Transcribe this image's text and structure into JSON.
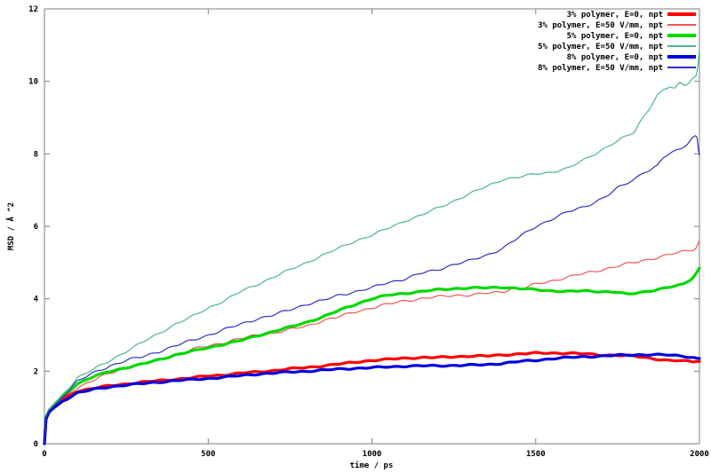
{
  "chart_data": {
    "type": "line",
    "title": "",
    "xlabel": "time / ps",
    "ylabel": "MSD / Å ^2",
    "xlim": [
      0,
      2000
    ],
    "ylim": [
      0,
      12
    ],
    "x_ticks": [
      "0",
      "500",
      "1000",
      "1500",
      "2000"
    ],
    "x_tick_values": [
      0,
      500,
      1000,
      1500,
      2000
    ],
    "y_ticks": [
      "0",
      "2",
      "4",
      "6",
      "8",
      "10",
      "12"
    ],
    "y_tick_values": [
      0,
      2,
      4,
      6,
      8,
      10,
      12
    ],
    "grid": false,
    "legend_position": "top-right-inside",
    "border_color": "#7f7f7f",
    "text_color": "#000000",
    "series": [
      {
        "name": "3% polymer, E=0, npt",
        "color": "#ff0000",
        "width": 3.2,
        "noise": 0.022,
        "points": [
          [
            0,
            0
          ],
          [
            5,
            0.7
          ],
          [
            15,
            0.9
          ],
          [
            30,
            1.02
          ],
          [
            60,
            1.25
          ],
          [
            100,
            1.45
          ],
          [
            150,
            1.53
          ],
          [
            200,
            1.6
          ],
          [
            250,
            1.65
          ],
          [
            300,
            1.7
          ],
          [
            350,
            1.74
          ],
          [
            400,
            1.78
          ],
          [
            450,
            1.82
          ],
          [
            500,
            1.87
          ],
          [
            550,
            1.9
          ],
          [
            600,
            1.95
          ],
          [
            650,
            1.98
          ],
          [
            700,
            2.02
          ],
          [
            750,
            2.07
          ],
          [
            800,
            2.1
          ],
          [
            850,
            2.15
          ],
          [
            900,
            2.2
          ],
          [
            950,
            2.25
          ],
          [
            1000,
            2.3
          ],
          [
            1050,
            2.33
          ],
          [
            1100,
            2.36
          ],
          [
            1150,
            2.38
          ],
          [
            1200,
            2.38
          ],
          [
            1250,
            2.4
          ],
          [
            1300,
            2.42
          ],
          [
            1350,
            2.42
          ],
          [
            1400,
            2.45
          ],
          [
            1450,
            2.48
          ],
          [
            1500,
            2.5
          ],
          [
            1550,
            2.5
          ],
          [
            1600,
            2.5
          ],
          [
            1650,
            2.48
          ],
          [
            1700,
            2.45
          ],
          [
            1750,
            2.44
          ],
          [
            1800,
            2.42
          ],
          [
            1850,
            2.36
          ],
          [
            1900,
            2.3
          ],
          [
            1950,
            2.28
          ],
          [
            2000,
            2.27
          ]
        ]
      },
      {
        "name": "3% polymer, E=50 V/mm, npt",
        "color": "#f05555",
        "width": 1.2,
        "noise": 0.04,
        "points": [
          [
            0,
            0
          ],
          [
            5,
            0.7
          ],
          [
            15,
            0.9
          ],
          [
            30,
            1.05
          ],
          [
            60,
            1.3
          ],
          [
            100,
            1.55
          ],
          [
            150,
            1.75
          ],
          [
            200,
            1.95
          ],
          [
            250,
            2.1
          ],
          [
            300,
            2.2
          ],
          [
            350,
            2.3
          ],
          [
            400,
            2.45
          ],
          [
            450,
            2.6
          ],
          [
            500,
            2.7
          ],
          [
            550,
            2.8
          ],
          [
            600,
            2.9
          ],
          [
            650,
            3.0
          ],
          [
            700,
            3.05
          ],
          [
            750,
            3.15
          ],
          [
            800,
            3.25
          ],
          [
            850,
            3.4
          ],
          [
            900,
            3.5
          ],
          [
            950,
            3.65
          ],
          [
            1000,
            3.75
          ],
          [
            1050,
            3.85
          ],
          [
            1100,
            3.95
          ],
          [
            1150,
            4.0
          ],
          [
            1200,
            4.05
          ],
          [
            1250,
            4.1
          ],
          [
            1300,
            4.1
          ],
          [
            1350,
            4.15
          ],
          [
            1400,
            4.2
          ],
          [
            1430,
            4.3
          ],
          [
            1460,
            4.28
          ],
          [
            1500,
            4.4
          ],
          [
            1550,
            4.5
          ],
          [
            1600,
            4.6
          ],
          [
            1650,
            4.7
          ],
          [
            1700,
            4.8
          ],
          [
            1750,
            4.9
          ],
          [
            1800,
            5.0
          ],
          [
            1850,
            5.1
          ],
          [
            1900,
            5.2
          ],
          [
            1950,
            5.3
          ],
          [
            1975,
            5.35
          ],
          [
            1990,
            5.4
          ],
          [
            2000,
            5.6
          ]
        ]
      },
      {
        "name": "5% polymer, E=0, npt",
        "color": "#00d900",
        "width": 3.2,
        "noise": 0.022,
        "points": [
          [
            0,
            0
          ],
          [
            5,
            0.73
          ],
          [
            15,
            0.93
          ],
          [
            30,
            1.08
          ],
          [
            60,
            1.35
          ],
          [
            100,
            1.65
          ],
          [
            150,
            1.85
          ],
          [
            200,
            2.0
          ],
          [
            250,
            2.1
          ],
          [
            300,
            2.2
          ],
          [
            350,
            2.32
          ],
          [
            400,
            2.45
          ],
          [
            450,
            2.55
          ],
          [
            500,
            2.65
          ],
          [
            550,
            2.75
          ],
          [
            600,
            2.85
          ],
          [
            650,
            2.98
          ],
          [
            700,
            3.1
          ],
          [
            750,
            3.22
          ],
          [
            800,
            3.35
          ],
          [
            850,
            3.5
          ],
          [
            900,
            3.68
          ],
          [
            950,
            3.85
          ],
          [
            1000,
            4.0
          ],
          [
            1050,
            4.1
          ],
          [
            1100,
            4.15
          ],
          [
            1150,
            4.2
          ],
          [
            1200,
            4.25
          ],
          [
            1250,
            4.28
          ],
          [
            1300,
            4.3
          ],
          [
            1350,
            4.3
          ],
          [
            1400,
            4.32
          ],
          [
            1450,
            4.28
          ],
          [
            1500,
            4.25
          ],
          [
            1550,
            4.22
          ],
          [
            1600,
            4.2
          ],
          [
            1650,
            4.22
          ],
          [
            1700,
            4.2
          ],
          [
            1750,
            4.18
          ],
          [
            1780,
            4.12
          ],
          [
            1800,
            4.15
          ],
          [
            1850,
            4.22
          ],
          [
            1900,
            4.3
          ],
          [
            1950,
            4.4
          ],
          [
            1975,
            4.55
          ],
          [
            1990,
            4.7
          ],
          [
            2000,
            4.85
          ]
        ]
      },
      {
        "name": "5% polymer, E=50 V/mm, npt",
        "color": "#4cb888",
        "width": 1.2,
        "noise": 0.035,
        "points": [
          [
            0,
            0
          ],
          [
            5,
            0.75
          ],
          [
            15,
            0.95
          ],
          [
            30,
            1.1
          ],
          [
            60,
            1.4
          ],
          [
            100,
            1.82
          ],
          [
            150,
            2.05
          ],
          [
            200,
            2.3
          ],
          [
            250,
            2.55
          ],
          [
            300,
            2.8
          ],
          [
            350,
            3.05
          ],
          [
            400,
            3.3
          ],
          [
            450,
            3.5
          ],
          [
            500,
            3.75
          ],
          [
            550,
            3.95
          ],
          [
            600,
            4.2
          ],
          [
            650,
            4.4
          ],
          [
            700,
            4.6
          ],
          [
            750,
            4.8
          ],
          [
            800,
            5.0
          ],
          [
            850,
            5.2
          ],
          [
            900,
            5.4
          ],
          [
            950,
            5.6
          ],
          [
            1000,
            5.75
          ],
          [
            1050,
            5.95
          ],
          [
            1100,
            6.15
          ],
          [
            1150,
            6.3
          ],
          [
            1200,
            6.5
          ],
          [
            1250,
            6.7
          ],
          [
            1300,
            6.9
          ],
          [
            1350,
            7.1
          ],
          [
            1400,
            7.3
          ],
          [
            1450,
            7.35
          ],
          [
            1500,
            7.45
          ],
          [
            1550,
            7.5
          ],
          [
            1600,
            7.6
          ],
          [
            1650,
            7.85
          ],
          [
            1700,
            8.1
          ],
          [
            1750,
            8.35
          ],
          [
            1800,
            8.6
          ],
          [
            1820,
            8.9
          ],
          [
            1850,
            9.3
          ],
          [
            1870,
            9.6
          ],
          [
            1890,
            9.75
          ],
          [
            1910,
            9.85
          ],
          [
            1925,
            9.8
          ],
          [
            1940,
            9.95
          ],
          [
            1955,
            9.9
          ],
          [
            1970,
            10.0
          ],
          [
            1980,
            10.1
          ],
          [
            1990,
            10.15
          ],
          [
            1995,
            10.4
          ],
          [
            2000,
            10.9
          ]
        ]
      },
      {
        "name": "8% polymer, E=0, npt",
        "color": "#0000e0",
        "width": 3.2,
        "noise": 0.022,
        "points": [
          [
            0,
            0
          ],
          [
            5,
            0.68
          ],
          [
            15,
            0.88
          ],
          [
            30,
            1.0
          ],
          [
            60,
            1.2
          ],
          [
            100,
            1.4
          ],
          [
            150,
            1.5
          ],
          [
            200,
            1.57
          ],
          [
            250,
            1.62
          ],
          [
            300,
            1.66
          ],
          [
            350,
            1.7
          ],
          [
            400,
            1.74
          ],
          [
            450,
            1.77
          ],
          [
            500,
            1.8
          ],
          [
            550,
            1.84
          ],
          [
            600,
            1.88
          ],
          [
            650,
            1.92
          ],
          [
            700,
            1.95
          ],
          [
            750,
            1.98
          ],
          [
            800,
            2.0
          ],
          [
            850,
            2.03
          ],
          [
            900,
            2.06
          ],
          [
            950,
            2.08
          ],
          [
            1000,
            2.1
          ],
          [
            1050,
            2.12
          ],
          [
            1100,
            2.14
          ],
          [
            1150,
            2.15
          ],
          [
            1200,
            2.15
          ],
          [
            1250,
            2.16
          ],
          [
            1300,
            2.17
          ],
          [
            1350,
            2.18
          ],
          [
            1400,
            2.22
          ],
          [
            1450,
            2.27
          ],
          [
            1500,
            2.3
          ],
          [
            1550,
            2.35
          ],
          [
            1600,
            2.38
          ],
          [
            1650,
            2.4
          ],
          [
            1700,
            2.42
          ],
          [
            1750,
            2.44
          ],
          [
            1800,
            2.45
          ],
          [
            1850,
            2.46
          ],
          [
            1900,
            2.45
          ],
          [
            1950,
            2.42
          ],
          [
            2000,
            2.35
          ]
        ]
      },
      {
        "name": "8% polymer, E=50 V/mm, npt",
        "color": "#3030c8",
        "width": 1.2,
        "noise": 0.04,
        "points": [
          [
            0,
            0
          ],
          [
            5,
            0.72
          ],
          [
            15,
            0.92
          ],
          [
            30,
            1.05
          ],
          [
            60,
            1.35
          ],
          [
            100,
            1.72
          ],
          [
            150,
            1.95
          ],
          [
            200,
            2.15
          ],
          [
            250,
            2.3
          ],
          [
            300,
            2.4
          ],
          [
            350,
            2.55
          ],
          [
            400,
            2.7
          ],
          [
            450,
            2.85
          ],
          [
            500,
            3.0
          ],
          [
            550,
            3.15
          ],
          [
            600,
            3.3
          ],
          [
            650,
            3.45
          ],
          [
            700,
            3.55
          ],
          [
            750,
            3.7
          ],
          [
            800,
            3.85
          ],
          [
            850,
            3.95
          ],
          [
            900,
            4.1
          ],
          [
            950,
            4.2
          ],
          [
            1000,
            4.3
          ],
          [
            1050,
            4.45
          ],
          [
            1100,
            4.55
          ],
          [
            1150,
            4.7
          ],
          [
            1200,
            4.8
          ],
          [
            1250,
            4.95
          ],
          [
            1300,
            5.05
          ],
          [
            1350,
            5.2
          ],
          [
            1400,
            5.4
          ],
          [
            1450,
            5.7
          ],
          [
            1500,
            6.0
          ],
          [
            1550,
            6.2
          ],
          [
            1600,
            6.4
          ],
          [
            1650,
            6.55
          ],
          [
            1700,
            6.75
          ],
          [
            1720,
            6.85
          ],
          [
            1750,
            7.05
          ],
          [
            1780,
            7.2
          ],
          [
            1800,
            7.3
          ],
          [
            1830,
            7.5
          ],
          [
            1850,
            7.55
          ],
          [
            1870,
            7.65
          ],
          [
            1890,
            7.9
          ],
          [
            1910,
            8.0
          ],
          [
            1930,
            8.1
          ],
          [
            1950,
            8.2
          ],
          [
            1965,
            8.3
          ],
          [
            1980,
            8.45
          ],
          [
            1988,
            8.5
          ],
          [
            1993,
            8.45
          ],
          [
            1997,
            8.1
          ],
          [
            2000,
            7.95
          ]
        ]
      }
    ]
  }
}
